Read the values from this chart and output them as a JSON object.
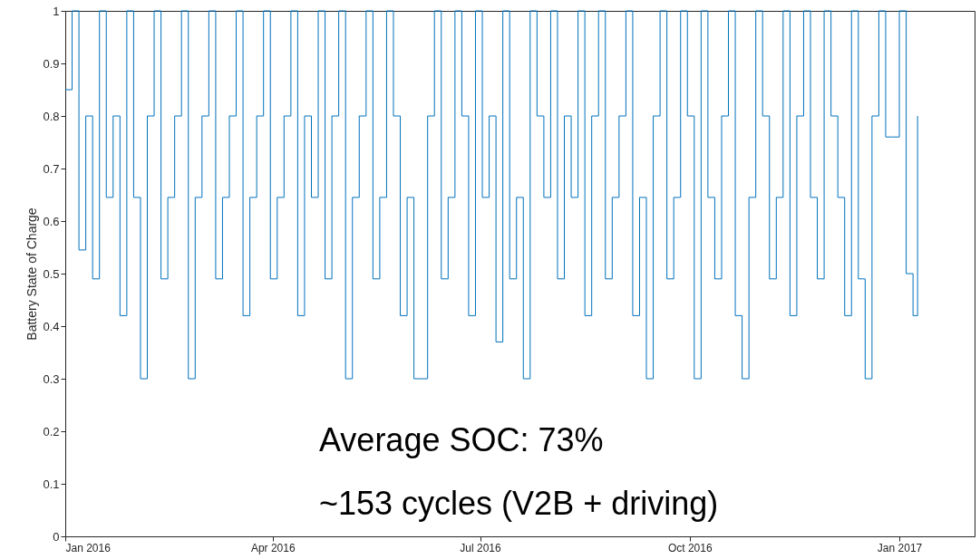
{
  "chart_data": {
    "type": "step",
    "ylabel": "Battery State of Charge",
    "annotations": [
      "Average SOC: 73%",
      "~153 cycles (V2B + driving)"
    ],
    "x": [
      "2016-01-01",
      "2016-01-04",
      "2016-01-07",
      "2016-01-10",
      "2016-01-13",
      "2016-01-16",
      "2016-01-19",
      "2016-01-22",
      "2016-01-25",
      "2016-01-28",
      "2016-01-31",
      "2016-02-03",
      "2016-02-06",
      "2016-02-09",
      "2016-02-12",
      "2016-02-15",
      "2016-02-18",
      "2016-02-21",
      "2016-02-24",
      "2016-02-27",
      "2016-03-01",
      "2016-03-04",
      "2016-03-07",
      "2016-03-10",
      "2016-03-13",
      "2016-03-16",
      "2016-03-19",
      "2016-03-22",
      "2016-03-25",
      "2016-03-28",
      "2016-03-31",
      "2016-04-03",
      "2016-04-06",
      "2016-04-09",
      "2016-04-12",
      "2016-04-15",
      "2016-04-18",
      "2016-04-21",
      "2016-04-24",
      "2016-04-27",
      "2016-04-30",
      "2016-05-03",
      "2016-05-06",
      "2016-05-09",
      "2016-05-12",
      "2016-05-15",
      "2016-05-18",
      "2016-05-21",
      "2016-05-24",
      "2016-05-27",
      "2016-05-30",
      "2016-06-02",
      "2016-06-05",
      "2016-06-08",
      "2016-06-11",
      "2016-06-14",
      "2016-06-17",
      "2016-06-20",
      "2016-06-23",
      "2016-06-26",
      "2016-06-29",
      "2016-07-02",
      "2016-07-05",
      "2016-07-08",
      "2016-07-11",
      "2016-07-14",
      "2016-07-17",
      "2016-07-20",
      "2016-07-23",
      "2016-07-26",
      "2016-07-29",
      "2016-08-01",
      "2016-08-04",
      "2016-08-07",
      "2016-08-10",
      "2016-08-13",
      "2016-08-16",
      "2016-08-19",
      "2016-08-22",
      "2016-08-25",
      "2016-08-28",
      "2016-08-31",
      "2016-09-03",
      "2016-09-06",
      "2016-09-09",
      "2016-09-12",
      "2016-09-15",
      "2016-09-18",
      "2016-09-21",
      "2016-09-24",
      "2016-09-27",
      "2016-09-30",
      "2016-10-03",
      "2016-10-06",
      "2016-10-09",
      "2016-10-12",
      "2016-10-15",
      "2016-10-18",
      "2016-10-21",
      "2016-10-24",
      "2016-10-27",
      "2016-10-30",
      "2016-11-02",
      "2016-11-05",
      "2016-11-08",
      "2016-11-11",
      "2016-11-14",
      "2016-11-17",
      "2016-11-20",
      "2016-11-23",
      "2016-11-26",
      "2016-11-29",
      "2016-12-02",
      "2016-12-05",
      "2016-12-08",
      "2016-12-11",
      "2016-12-14",
      "2016-12-17",
      "2016-12-20",
      "2016-12-23",
      "2016-12-26",
      "2016-12-29",
      "2017-01-01",
      "2017-01-04",
      "2017-01-07",
      "2017-01-09"
    ],
    "series": [
      {
        "color": "#0072bd",
        "values": [
          0.85,
          1,
          0.545,
          0.8,
          0.49,
          1,
          0.645,
          0.8,
          0.42,
          1,
          0.645,
          0.3,
          0.8,
          1,
          0.49,
          0.645,
          0.8,
          1,
          0.3,
          0.645,
          0.8,
          1,
          0.49,
          0.645,
          0.8,
          1,
          0.42,
          0.645,
          0.8,
          1,
          0.49,
          0.645,
          0.8,
          1,
          0.42,
          0.8,
          0.645,
          1,
          0.49,
          0.8,
          1,
          0.3,
          0.645,
          0.8,
          1,
          0.49,
          0.645,
          1,
          0.8,
          0.42,
          0.645,
          0.3,
          0.3,
          0.8,
          1,
          0.49,
          0.645,
          1,
          0.8,
          0.42,
          1,
          0.645,
          0.8,
          0.37,
          1,
          0.49,
          0.645,
          0.3,
          1,
          0.8,
          0.645,
          1,
          0.49,
          0.8,
          0.645,
          1,
          0.42,
          0.8,
          1,
          0.49,
          0.645,
          0.8,
          1,
          0.42,
          0.645,
          0.3,
          0.8,
          1,
          0.49,
          0.645,
          1,
          0.8,
          0.3,
          1,
          0.645,
          0.49,
          0.8,
          1,
          0.42,
          0.3,
          0.645,
          1,
          0.8,
          0.49,
          0.645,
          1,
          0.42,
          0.8,
          1,
          0.645,
          0.49,
          1,
          0.8,
          0.645,
          0.42,
          1,
          0.49,
          0.3,
          0.8,
          1,
          0.76,
          0.76,
          1,
          0.5,
          0.42,
          0.8
        ]
      }
    ],
    "xlim": [
      "2016-01-01",
      "2017-02-03"
    ],
    "xticks": [
      {
        "value": "2016-01-01",
        "label": "Jan 2016"
      },
      {
        "value": "2016-04-01",
        "label": "Apr 2016"
      },
      {
        "value": "2016-07-01",
        "label": "Jul 2016"
      },
      {
        "value": "2016-10-01",
        "label": "Oct 2016"
      },
      {
        "value": "2017-01-01",
        "label": "Jan 2017"
      }
    ],
    "ylim": [
      0,
      1
    ],
    "yticks": [
      0,
      0.1,
      0.2,
      0.3,
      0.4,
      0.5,
      0.6,
      0.7,
      0.8,
      0.9,
      1
    ],
    "grid": false,
    "line_style": "solid"
  }
}
